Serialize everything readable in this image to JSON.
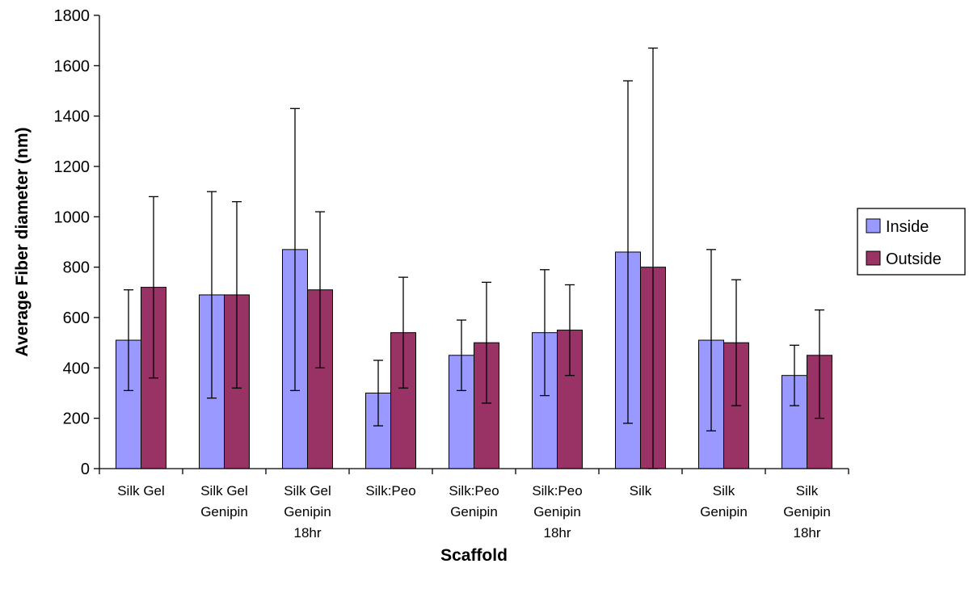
{
  "chart_data": {
    "type": "bar",
    "title": "",
    "xlabel": "Scaffold",
    "ylabel": "Average Fiber diameter (nm)",
    "ylim": [
      0,
      1800
    ],
    "yticks": [
      0,
      200,
      400,
      600,
      800,
      1000,
      1200,
      1400,
      1600,
      1800
    ],
    "grid": false,
    "legend_position": "right",
    "categories": [
      [
        "Silk Gel"
      ],
      [
        "Silk Gel",
        "Genipin"
      ],
      [
        "Silk Gel",
        "Genipin",
        "18hr"
      ],
      [
        "Silk:Peo"
      ],
      [
        "Silk:Peo",
        "Genipin"
      ],
      [
        "Silk:Peo",
        "Genipin",
        "18hr"
      ],
      [
        "Silk"
      ],
      [
        "Silk",
        "Genipin"
      ],
      [
        "Silk",
        "Genipin",
        "18hr"
      ]
    ],
    "series": [
      {
        "name": "Inside",
        "color": "#9999ff",
        "values": [
          510,
          690,
          870,
          300,
          450,
          540,
          860,
          510,
          370
        ],
        "error_low": [
          310,
          280,
          310,
          170,
          310,
          290,
          180,
          150,
          250
        ],
        "error_high": [
          710,
          1100,
          1430,
          430,
          590,
          790,
          1540,
          870,
          490
        ]
      },
      {
        "name": "Outside",
        "color": "#993366",
        "values": [
          720,
          690,
          710,
          540,
          500,
          550,
          800,
          500,
          450
        ],
        "error_low": [
          360,
          320,
          400,
          320,
          260,
          370,
          0,
          250,
          200
        ],
        "error_high": [
          1080,
          1060,
          1020,
          760,
          740,
          730,
          1670,
          750,
          630
        ]
      }
    ]
  }
}
